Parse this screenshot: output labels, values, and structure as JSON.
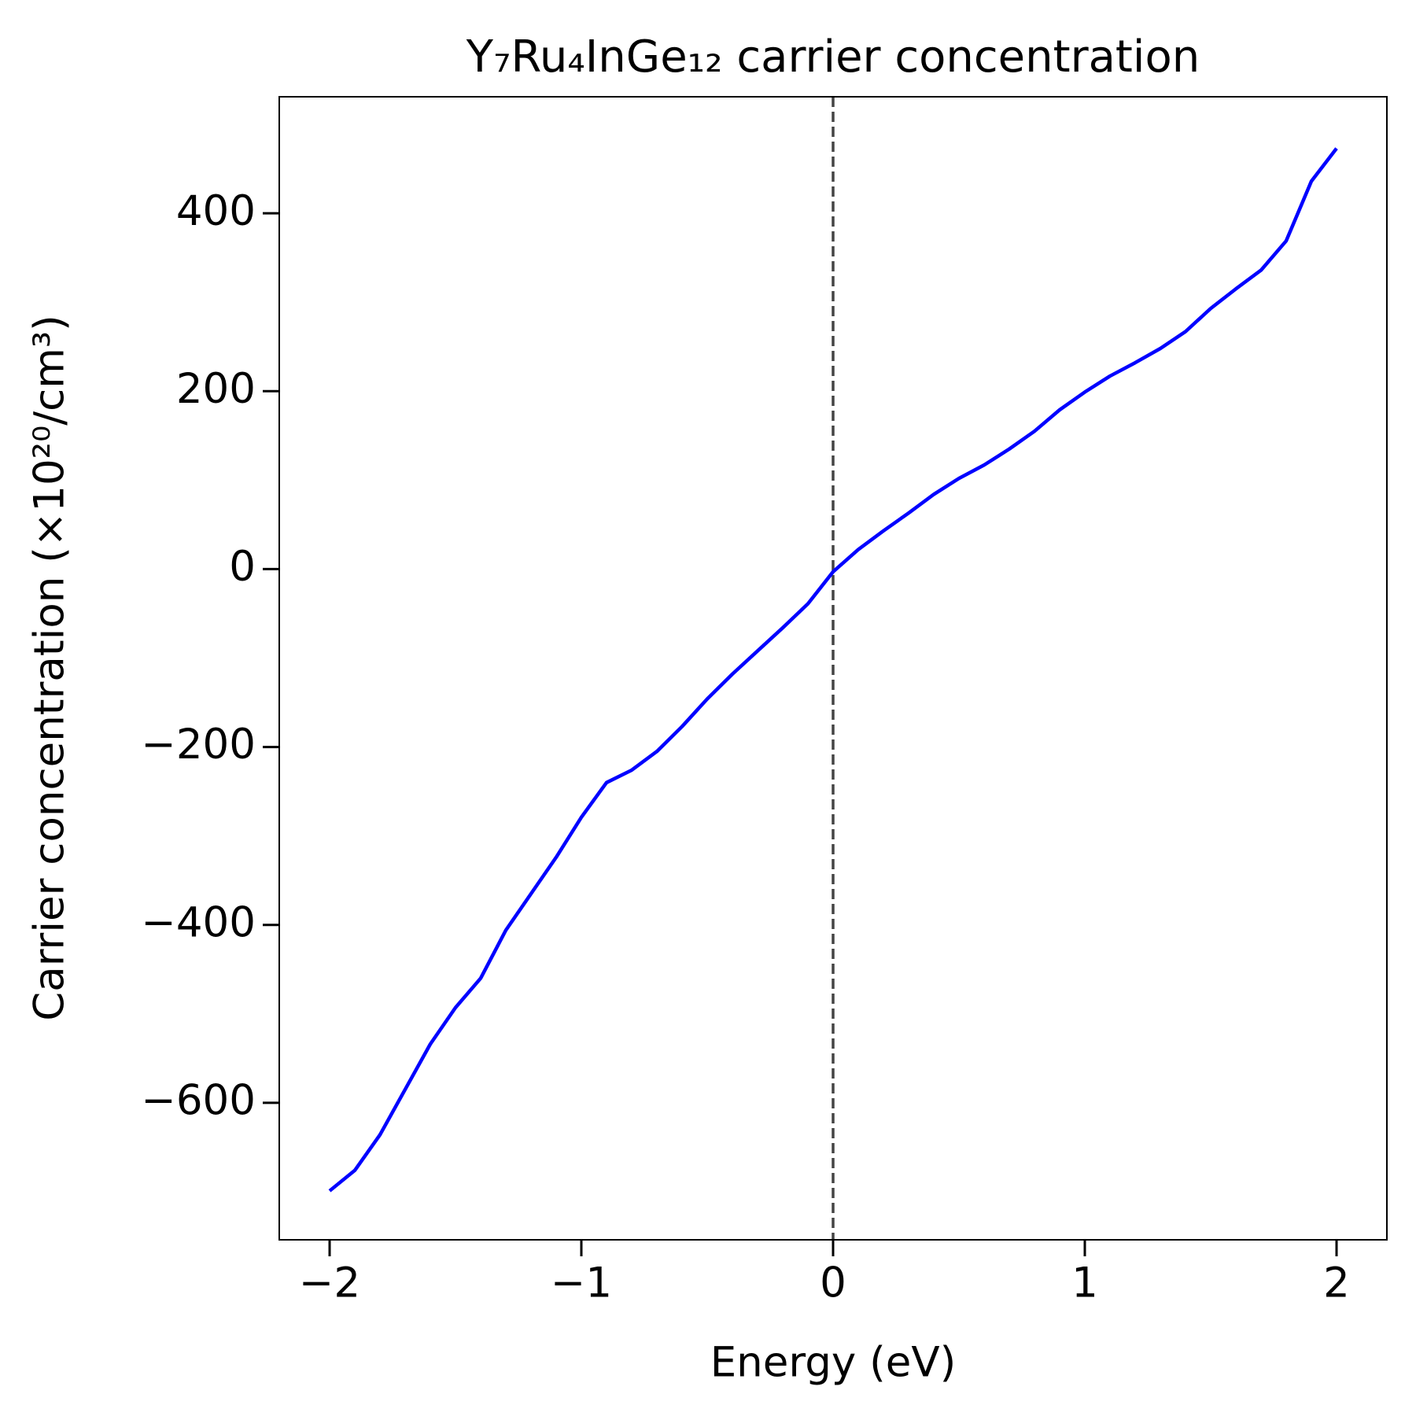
{
  "chart_data": {
    "type": "line",
    "title": "Y₇Ru₄InGe₁₂ carrier concentration",
    "x_label": "Energy (eV)",
    "y_label": "Carrier concentration (×10²⁰/cm³)",
    "x": [
      -2,
      -1.9,
      -1.8,
      -1.7,
      -1.6,
      -1.5,
      -1.4,
      -1.3,
      -1.2,
      -1.1,
      -1,
      -0.9,
      -0.8,
      -0.7,
      -0.6,
      -0.5,
      -0.4,
      -0.3,
      -0.2,
      -0.1,
      0,
      0.1,
      0.2,
      0.3,
      0.4,
      0.5,
      0.6,
      0.7,
      0.8,
      0.9,
      1,
      1.1,
      1.2,
      1.3,
      1.4,
      1.5,
      1.6,
      1.7,
      1.8,
      1.9,
      2
    ],
    "series": [
      {
        "color": "#0000ff",
        "values": [
          -699,
          -676,
          -636,
          -585,
          -534,
          -493,
          -460,
          -406,
          -365,
          -324,
          -279,
          -240,
          -226,
          -205,
          -177,
          -146,
          -118,
          -92,
          -66,
          -39,
          -3,
          22,
          43,
          63,
          84,
          102,
          117,
          135,
          155,
          179,
          199,
          217,
          232,
          248,
          267,
          293,
          315,
          336,
          369,
          436,
          473
        ]
      }
    ],
    "xlim": [
      -2.2,
      2.2
    ],
    "ylim": [
      -754,
      531
    ],
    "xticks": [
      {
        "value": -2,
        "label": "−2"
      },
      {
        "value": -1,
        "label": "−1"
      },
      0,
      1,
      2
    ],
    "yticks": [
      {
        "value": -600,
        "label": "−600"
      },
      {
        "value": -400,
        "label": "−400"
      },
      {
        "value": -200,
        "label": "−200"
      },
      0,
      200,
      400
    ],
    "grid": false,
    "vline": {
      "x": 0,
      "color": "#444444",
      "style": "dashed"
    }
  }
}
